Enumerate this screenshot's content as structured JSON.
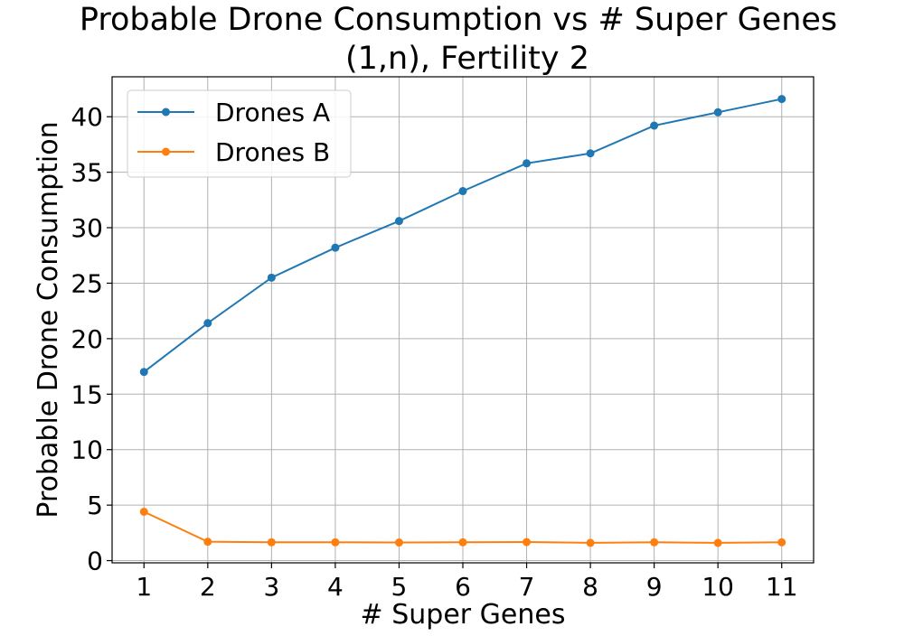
{
  "chart_data": {
    "type": "line",
    "title": "Probable Drone Consumption vs # Super Genes",
    "subtitle": "(1,n), Fertility 2",
    "xlabel": "# Super Genes",
    "ylabel": "Probable Drone Consumption",
    "x": [
      1,
      2,
      3,
      4,
      5,
      6,
      7,
      8,
      9,
      10,
      11
    ],
    "xlim": [
      0.5,
      11.5
    ],
    "ylim": [
      -0.2,
      43.6
    ],
    "yticks": [
      0,
      5,
      10,
      15,
      20,
      25,
      30,
      35,
      40
    ],
    "grid": true,
    "legend_position": "upper-left",
    "series": [
      {
        "name": "Drones A",
        "color": "#1f77b4",
        "marker": "circle",
        "values": [
          17.0,
          21.4,
          25.5,
          28.2,
          30.6,
          33.3,
          35.8,
          36.7,
          39.2,
          40.4,
          41.6
        ]
      },
      {
        "name": "Drones B",
        "color": "#ff7f0e",
        "marker": "circle",
        "values": [
          4.4,
          1.7,
          1.65,
          1.65,
          1.63,
          1.65,
          1.67,
          1.6,
          1.65,
          1.6,
          1.65
        ]
      }
    ]
  }
}
